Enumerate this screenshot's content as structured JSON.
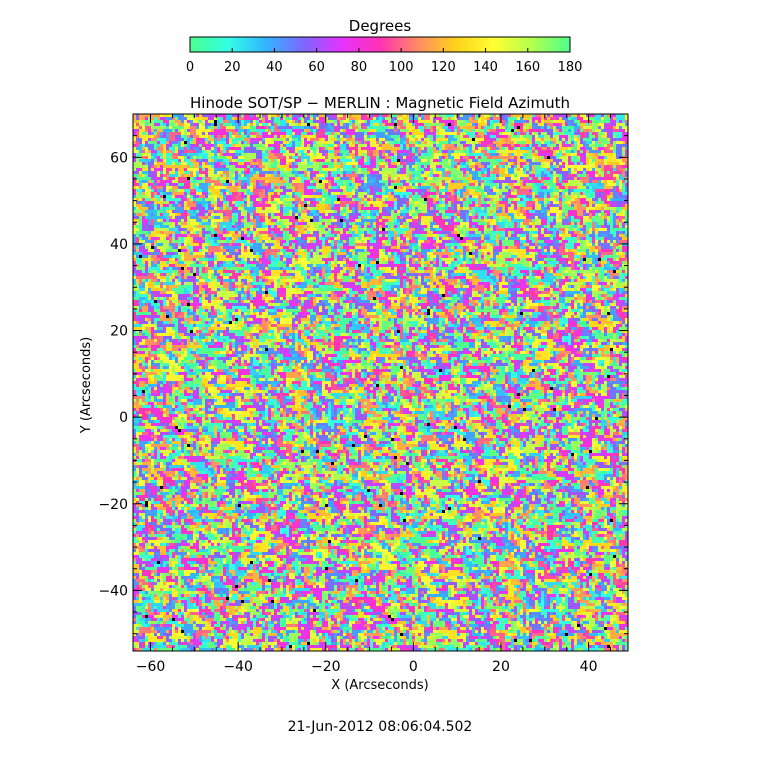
{
  "chart_data": {
    "type": "heatmap",
    "title": "Hinode SOT/SP − MERLIN : Magnetic Field Azimuth",
    "xlabel": "X (Arcseconds)",
    "ylabel": "Y (Arcseconds)",
    "xlim": [
      -64,
      49
    ],
    "ylim": [
      -54,
      70
    ],
    "x_ticks": [
      -60,
      -40,
      -20,
      0,
      20,
      40
    ],
    "x_tick_labels": [
      "−60",
      "−40",
      "−20",
      "0",
      "20",
      "40"
    ],
    "y_ticks": [
      -40,
      -20,
      0,
      20,
      40,
      60
    ],
    "y_tick_labels": [
      "−40",
      "−20",
      "0",
      "20",
      "40",
      "60"
    ],
    "value_range": [
      0,
      180
    ],
    "value_unit": "Degrees",
    "colorbar": {
      "label": "Degrees",
      "ticks": [
        0,
        20,
        40,
        60,
        80,
        100,
        120,
        140,
        160,
        180
      ],
      "tick_labels": [
        "0",
        "20",
        "40",
        "60",
        "80",
        "100",
        "120",
        "140",
        "160",
        "180"
      ],
      "colormap": [
        "#4dff8c",
        "#33ffe6",
        "#33b3ff",
        "#7f66ff",
        "#e633ff",
        "#ff33b3",
        "#ff8c66",
        "#ffd21a",
        "#ffff33",
        "#b3ff4d",
        "#4dff8c"
      ]
    },
    "grid": false,
    "values_note": "dense noise-like azimuth map; individual pixel values not legible"
  },
  "timestamp": "21-Jun-2012 08:06:04.502"
}
